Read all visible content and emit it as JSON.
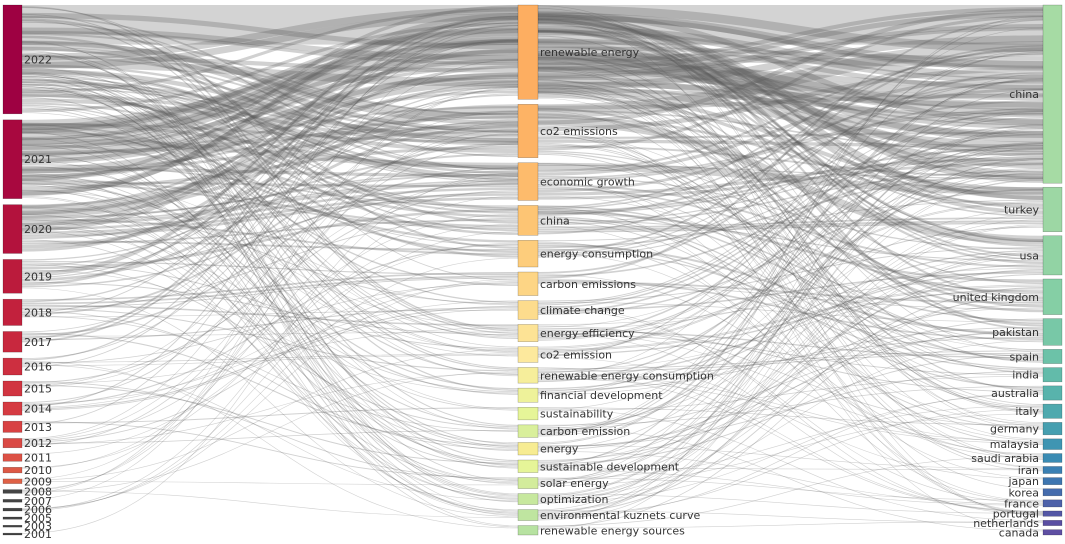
{
  "chart_data": {
    "type": "sankey",
    "columns": [
      {
        "name": "",
        "nodes": [
          {
            "label": "2022",
            "weight": 58,
            "color": "#9e0142"
          },
          {
            "label": "2021",
            "weight": 42,
            "color": "#a8083f"
          },
          {
            "label": "2020",
            "weight": 26,
            "color": "#b3123d"
          },
          {
            "label": "2019",
            "weight": 18,
            "color": "#bb1b3c"
          },
          {
            "label": "2018",
            "weight": 14,
            "color": "#c2213d"
          },
          {
            "label": "2017",
            "weight": 11,
            "color": "#c8283e"
          },
          {
            "label": "2016",
            "weight": 9,
            "color": "#cd2f40"
          },
          {
            "label": "2015",
            "weight": 8,
            "color": "#d13541"
          },
          {
            "label": "2014",
            "weight": 7,
            "color": "#d53b42"
          },
          {
            "label": "2013",
            "weight": 6,
            "color": "#d84243"
          },
          {
            "label": "2012",
            "weight": 5,
            "color": "#da4944"
          },
          {
            "label": "2011",
            "weight": 4,
            "color": "#dc5145"
          },
          {
            "label": "2010",
            "weight": 3,
            "color": "#dd5946"
          },
          {
            "label": "2009",
            "weight": 2.5,
            "color": "#df6146"
          },
          {
            "label": "2008",
            "weight": 2,
            "color": "#444444"
          },
          {
            "label": "2007",
            "weight": 1.5,
            "color": "#444444"
          },
          {
            "label": "2006",
            "weight": 1.5,
            "color": "#444444"
          },
          {
            "label": "2005",
            "weight": 1.2,
            "color": "#444444"
          },
          {
            "label": "2003",
            "weight": 1,
            "color": "#444444"
          },
          {
            "label": "2001",
            "weight": 1,
            "color": "#444444"
          }
        ]
      },
      {
        "name": "",
        "nodes": [
          {
            "label": "renewable energy",
            "weight": 60,
            "color": "#fdae61"
          },
          {
            "label": "co2 emissions",
            "weight": 34,
            "color": "#fdb365"
          },
          {
            "label": "economic growth",
            "weight": 24,
            "color": "#fdbb6c"
          },
          {
            "label": "china",
            "weight": 19,
            "color": "#fdc574"
          },
          {
            "label": "energy consumption",
            "weight": 17,
            "color": "#fdcd7c"
          },
          {
            "label": "carbon emissions",
            "weight": 15,
            "color": "#fdd585"
          },
          {
            "label": "climate change",
            "weight": 12,
            "color": "#fddc8d"
          },
          {
            "label": "energy efficiency",
            "weight": 11,
            "color": "#fde395"
          },
          {
            "label": "co2 emission",
            "weight": 10,
            "color": "#fde99d"
          },
          {
            "label": "renewable energy consumption",
            "weight": 10,
            "color": "#f6ee9b"
          },
          {
            "label": "financial development",
            "weight": 9,
            "color": "#eef29a"
          },
          {
            "label": "sustainability",
            "weight": 8,
            "color": "#e6f598"
          },
          {
            "label": "carbon emission",
            "weight": 8,
            "color": "#d9ef9b"
          },
          {
            "label": "energy",
            "weight": 8,
            "color": "#f7ec92"
          },
          {
            "label": "sustainable development",
            "weight": 8,
            "color": "#e6f598"
          },
          {
            "label": "solar energy",
            "weight": 7,
            "color": "#d3ec9c"
          },
          {
            "label": "optimization",
            "weight": 7,
            "color": "#c7e89e"
          },
          {
            "label": "environmental kuznets curve",
            "weight": 7,
            "color": "#bfe5a0"
          },
          {
            "label": "renewable energy sources",
            "weight": 6,
            "color": "#b7e2a1"
          }
        ]
      },
      {
        "name": "",
        "nodes": [
          {
            "label": "china",
            "weight": 100,
            "color": "#a6dba4"
          },
          {
            "label": "turkey",
            "weight": 25,
            "color": "#9dd7a4"
          },
          {
            "label": "usa",
            "weight": 22,
            "color": "#92d3a4"
          },
          {
            "label": "united kingdom",
            "weight": 20,
            "color": "#85cfa5"
          },
          {
            "label": "pakistan",
            "weight": 15,
            "color": "#78c8a7"
          },
          {
            "label": "spain",
            "weight": 8,
            "color": "#6cc2a8"
          },
          {
            "label": "india",
            "weight": 8,
            "color": "#62bbaa"
          },
          {
            "label": "australia",
            "weight": 8,
            "color": "#58b3ac"
          },
          {
            "label": "italy",
            "weight": 8,
            "color": "#4ea9ae"
          },
          {
            "label": "germany",
            "weight": 7,
            "color": "#469fb0"
          },
          {
            "label": "malaysia",
            "weight": 6,
            "color": "#3f95b2"
          },
          {
            "label": "saudi arabia",
            "weight": 5,
            "color": "#3a8bb3"
          },
          {
            "label": "iran",
            "weight": 4,
            "color": "#3a80b3"
          },
          {
            "label": "japan",
            "weight": 4,
            "color": "#3e76b0"
          },
          {
            "label": "korea",
            "weight": 4,
            "color": "#456cad"
          },
          {
            "label": "france",
            "weight": 4,
            "color": "#4d61a9"
          },
          {
            "label": "portugal",
            "weight": 3,
            "color": "#5457a5"
          },
          {
            "label": "netherlands",
            "weight": 3,
            "color": "#5a4ea2"
          },
          {
            "label": "canada",
            "weight": 3,
            "color": "#5e4fa2"
          }
        ]
      }
    ]
  }
}
